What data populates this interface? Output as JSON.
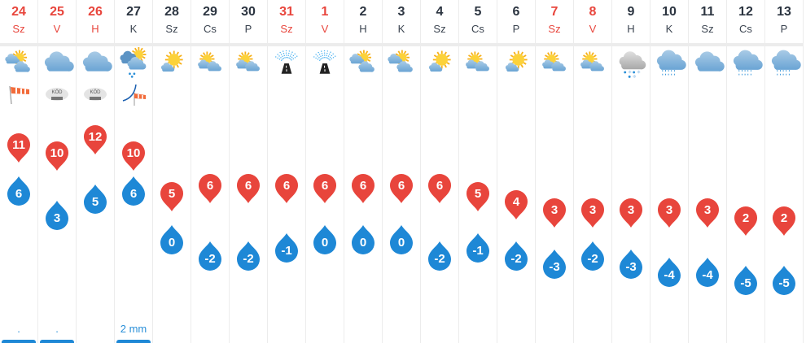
{
  "colors": {
    "weekend": "#e8453c",
    "max_pin": "#e8453c",
    "min_pin": "#1e88d6",
    "precip": "#2a8fd8"
  },
  "days": [
    {
      "date": "24",
      "day": "Sz",
      "weekend": true,
      "icon": "partly-cloudy",
      "extra_icon": "windsock-icon",
      "max": "11",
      "min": "6",
      "precip": "."
    },
    {
      "date": "25",
      "day": "V",
      "weekend": true,
      "icon": "cloud",
      "extra_icon": "fog-icon",
      "fog_label": "KÖD",
      "max": "10",
      "min": "3",
      "precip": "."
    },
    {
      "date": "26",
      "day": "H",
      "weekend": true,
      "icon": "cloud",
      "extra_icon": "fog-icon",
      "fog_label": "KÖD",
      "max": "12",
      "min": "5",
      "precip": ""
    },
    {
      "date": "27",
      "day": "K",
      "weekend": false,
      "icon": "sun-cloud-rain",
      "extra_icon": "storm-wind-icon",
      "max": "10",
      "min": "6",
      "precip": "2 mm"
    },
    {
      "date": "28",
      "day": "Sz",
      "weekend": false,
      "icon": "sun-small-cloud",
      "max": "5",
      "min": "0",
      "precip": ""
    },
    {
      "date": "29",
      "day": "Cs",
      "weekend": false,
      "icon": "sun-cloud",
      "max": "6",
      "min": "-2",
      "precip": ""
    },
    {
      "date": "30",
      "day": "P",
      "weekend": false,
      "icon": "sun-cloud",
      "max": "6",
      "min": "-2",
      "precip": ""
    },
    {
      "date": "31",
      "day": "Sz",
      "weekend": true,
      "icon": "icy-road",
      "max": "6",
      "min": "-1",
      "precip": ""
    },
    {
      "date": "1",
      "day": "V",
      "weekend": true,
      "icon": "icy-road",
      "max": "6",
      "min": "0",
      "precip": ""
    },
    {
      "date": "2",
      "day": "H",
      "weekend": false,
      "icon": "partly-cloudy",
      "max": "6",
      "min": "0",
      "precip": ""
    },
    {
      "date": "3",
      "day": "K",
      "weekend": false,
      "icon": "partly-cloudy",
      "max": "6",
      "min": "0",
      "precip": ""
    },
    {
      "date": "4",
      "day": "Sz",
      "weekend": false,
      "icon": "sun-small-cloud",
      "max": "6",
      "min": "-2",
      "precip": ""
    },
    {
      "date": "5",
      "day": "Cs",
      "weekend": false,
      "icon": "sun-cloud",
      "max": "5",
      "min": "-1",
      "precip": ""
    },
    {
      "date": "6",
      "day": "P",
      "weekend": false,
      "icon": "sun-small-cloud",
      "max": "4",
      "min": "-2",
      "precip": ""
    },
    {
      "date": "7",
      "day": "Sz",
      "weekend": true,
      "icon": "sun-cloud",
      "max": "3",
      "min": "-3",
      "precip": ""
    },
    {
      "date": "8",
      "day": "V",
      "weekend": true,
      "icon": "sun-cloud",
      "max": "3",
      "min": "-2",
      "precip": ""
    },
    {
      "date": "9",
      "day": "H",
      "weekend": false,
      "icon": "sleet",
      "max": "3",
      "min": "-3",
      "precip": ""
    },
    {
      "date": "10",
      "day": "K",
      "weekend": false,
      "icon": "rain",
      "max": "3",
      "min": "-4",
      "precip": ""
    },
    {
      "date": "11",
      "day": "Sz",
      "weekend": false,
      "icon": "cloud",
      "max": "3",
      "min": "-4",
      "precip": ""
    },
    {
      "date": "12",
      "day": "Cs",
      "weekend": false,
      "icon": "rain",
      "max": "2",
      "min": "-5",
      "precip": ""
    },
    {
      "date": "13",
      "day": "P",
      "weekend": false,
      "icon": "rain",
      "max": "2",
      "min": "-5",
      "precip": ""
    }
  ]
}
